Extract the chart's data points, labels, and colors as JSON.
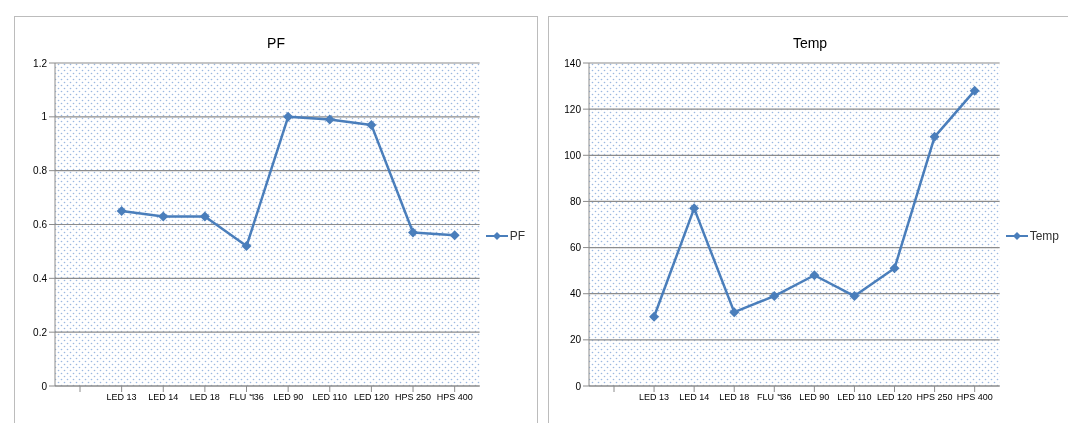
{
  "chart_data": [
    {
      "type": "line",
      "title": "PF",
      "categories": [
        null,
        "LED 13",
        "LED 14",
        "LED 18",
        "FLU ฯ36",
        "LED 90",
        "LED 110",
        "LED 120",
        "HPS 250",
        "HPS 400"
      ],
      "series": [
        {
          "name": "PF",
          "color": "#4a7ebb",
          "values": [
            null,
            0.65,
            0.63,
            0.63,
            0.52,
            1.0,
            0.99,
            0.97,
            0.57,
            0.56
          ]
        }
      ],
      "ylim": [
        0,
        1.2
      ],
      "yticks": [
        0,
        0.2,
        0.4,
        0.6,
        0.8,
        1,
        1.2
      ],
      "grid": "y",
      "legend": "right",
      "marker": "diamond"
    },
    {
      "type": "line",
      "title": "Temp",
      "categories": [
        null,
        "LED 13",
        "LED 14",
        "LED 18",
        "FLU ฯ36",
        "LED 90",
        "LED 110",
        "LED 120",
        "HPS 250",
        "HPS 400"
      ],
      "series": [
        {
          "name": "Temp",
          "color": "#4a7ebb",
          "values": [
            null,
            30,
            77,
            32,
            39,
            48,
            39,
            51,
            108,
            128
          ]
        }
      ],
      "ylim": [
        0,
        140
      ],
      "yticks": [
        0,
        20,
        40,
        60,
        80,
        100,
        120,
        140
      ],
      "grid": "y",
      "legend": "right",
      "marker": "diamond"
    }
  ]
}
